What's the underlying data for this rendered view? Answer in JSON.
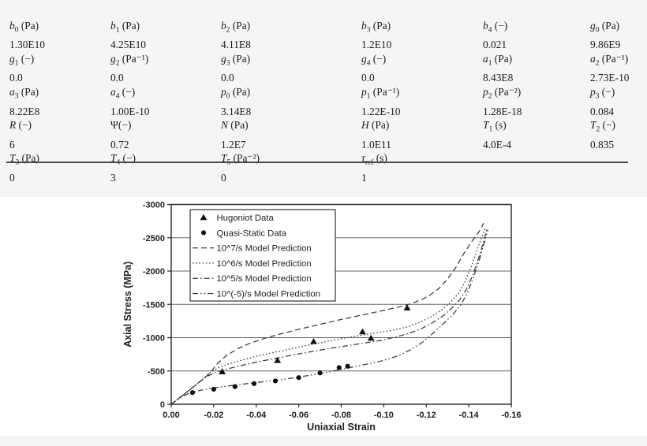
{
  "page": {
    "background_color": "#f5f5f6",
    "figure_background_color": "#ffffff",
    "text_color": "#1c1c1c",
    "line_color": "#3a3a3a"
  },
  "param_table": {
    "rows": [
      {
        "kind": "labels",
        "cells": [
          {
            "var": "b",
            "sub": "0",
            "unit": "(Pa)"
          },
          {
            "var": "b",
            "sub": "1",
            "unit": "(Pa)"
          },
          {
            "var": "b",
            "sub": "2",
            "unit": "(Pa)"
          },
          {
            "var": "b",
            "sub": "3",
            "unit": "(Pa)"
          },
          {
            "var": "b",
            "sub": "4",
            "unit": "(−)"
          },
          {
            "var": "g",
            "sub": "0",
            "unit": "(Pa)"
          }
        ]
      },
      {
        "kind": "values",
        "cells": [
          "1.30E10",
          "4.25E10",
          "4.11E8",
          "1.2E10",
          "0.021",
          "9.86E9"
        ]
      },
      {
        "kind": "labels",
        "cells": [
          {
            "var": "g",
            "sub": "1",
            "unit": "(−)"
          },
          {
            "var": "g",
            "sub": "2",
            "unit": "(Pa⁻¹)"
          },
          {
            "var": "g",
            "sub": "3",
            "unit": "(Pa)"
          },
          {
            "var": "g",
            "sub": "4",
            "unit": "(−)"
          },
          {
            "var": "a",
            "sub": "1",
            "unit": "(Pa)"
          },
          {
            "var": "a",
            "sub": "2",
            "unit": "(Pa⁻¹)"
          }
        ]
      },
      {
        "kind": "values",
        "cells": [
          "0.0",
          "0.0",
          "0.0",
          "0.0",
          "8.43E8",
          "2.73E-10"
        ]
      },
      {
        "kind": "labels",
        "cells": [
          {
            "var": "a",
            "sub": "3",
            "unit": "(Pa)"
          },
          {
            "var": "a",
            "sub": "4",
            "unit": "(−)"
          },
          {
            "var": "p",
            "sub": "0",
            "unit": "(Pa)"
          },
          {
            "var": "p",
            "sub": "1",
            "unit": "(Pa⁻¹)"
          },
          {
            "var": "p",
            "sub": "2",
            "unit": "(Pa⁻²)"
          },
          {
            "var": "p",
            "sub": "3",
            "unit": "(−)"
          }
        ]
      },
      {
        "kind": "values",
        "cells": [
          "8.22E8",
          "1.00E-10",
          "3.14E8",
          "1.22E-10",
          "1.28E-18",
          "0.084"
        ]
      },
      {
        "kind": "labels",
        "cells": [
          {
            "var": "R",
            "sub": "",
            "unit": "(−)"
          },
          {
            "var": "Ψ",
            "sub": "",
            "unit": "(−)",
            "nospace": true,
            "upright": true
          },
          {
            "var": "N",
            "sub": "",
            "unit": "(Pa)"
          },
          {
            "var": "H",
            "sub": "",
            "unit": "(Pa)"
          },
          {
            "var": "T",
            "sub": "1",
            "unit": "(s)"
          },
          {
            "var": "T",
            "sub": "2",
            "unit": "(−)"
          }
        ]
      },
      {
        "kind": "values",
        "cells": [
          "6",
          "0.72",
          "1.2E7",
          "1.0E11",
          "4.0E-4",
          "0.835"
        ]
      },
      {
        "kind": "labels",
        "cells": [
          {
            "var": "T",
            "sub": "3",
            "unit": "(Pa)"
          },
          {
            "var": "T",
            "sub": "4",
            "unit": "(−)"
          },
          {
            "var": "T",
            "sub": "5",
            "unit": "(Pa⁻²)"
          },
          {
            "var": "τ",
            "sub": "ref",
            "unit": "(s)"
          },
          null,
          null
        ]
      },
      {
        "kind": "values",
        "cells": [
          "0",
          "3",
          "0",
          "1",
          "",
          ""
        ]
      }
    ]
  },
  "chart_data": {
    "type": "line",
    "title": "",
    "xlabel": "Uniaxial Strain",
    "ylabel": "Axial Stress (MPa)",
    "xlim": [
      0,
      -0.16
    ],
    "ylim": [
      0,
      -3000
    ],
    "x_ticks": [
      0,
      -0.02,
      -0.04,
      -0.06,
      -0.08,
      -0.1,
      -0.12,
      -0.14,
      -0.16
    ],
    "x_tick_labels": [
      "0.00",
      "-0.02",
      "-0.04",
      "-0.06",
      "-0.08",
      "-0.10",
      "-0.12",
      "-0.14",
      "-0.16"
    ],
    "y_ticks": [
      0,
      -500,
      -1000,
      -1500,
      -2000,
      -2500,
      -3000
    ],
    "y_tick_labels": [
      "0",
      "-500",
      "-1000",
      "-1500",
      "-2000",
      "-2500",
      "-3000"
    ],
    "grid": "horizontal-only",
    "legend_position": "top-left",
    "scatter_series": [
      {
        "name": "Hugoniot Data",
        "marker": "triangle",
        "color": "#111111",
        "points": [
          [
            -0.024,
            -490
          ],
          [
            -0.05,
            -660
          ],
          [
            -0.067,
            -945
          ],
          [
            -0.09,
            -1090
          ],
          [
            -0.094,
            -995
          ],
          [
            -0.111,
            -1450
          ]
        ]
      },
      {
        "name": "Quasi-Static Data",
        "marker": "circle",
        "color": "#111111",
        "points": [
          [
            -0.01,
            -175
          ],
          [
            -0.02,
            -225
          ],
          [
            -0.03,
            -265
          ],
          [
            -0.039,
            -310
          ],
          [
            -0.049,
            -350
          ],
          [
            -0.06,
            -400
          ],
          [
            -0.07,
            -470
          ],
          [
            -0.079,
            -550
          ],
          [
            -0.083,
            -570
          ]
        ]
      }
    ],
    "line_series": [
      {
        "name": "10^7/s Model Prediction",
        "dash_name": "dashed",
        "dash": [
          7,
          4
        ],
        "color": "#3a3a3a",
        "points": [
          [
            0,
            0
          ],
          [
            -0.008,
            -200
          ],
          [
            -0.014,
            -350
          ],
          [
            -0.018,
            -460
          ],
          [
            -0.022,
            -620
          ],
          [
            -0.026,
            -730
          ],
          [
            -0.031,
            -830
          ],
          [
            -0.037,
            -915
          ],
          [
            -0.044,
            -990
          ],
          [
            -0.052,
            -1060
          ],
          [
            -0.06,
            -1125
          ],
          [
            -0.068,
            -1185
          ],
          [
            -0.076,
            -1245
          ],
          [
            -0.084,
            -1300
          ],
          [
            -0.092,
            -1355
          ],
          [
            -0.1,
            -1410
          ],
          [
            -0.107,
            -1460
          ],
          [
            -0.113,
            -1510
          ],
          [
            -0.118,
            -1575
          ],
          [
            -0.122,
            -1645
          ],
          [
            -0.126,
            -1740
          ],
          [
            -0.13,
            -1880
          ],
          [
            -0.134,
            -2060
          ],
          [
            -0.138,
            -2280
          ],
          [
            -0.142,
            -2470
          ],
          [
            -0.145,
            -2600
          ],
          [
            -0.147,
            -2720
          ]
        ]
      },
      {
        "name": "10^6/s Model Prediction",
        "dash_name": "dotted",
        "dash": [
          1.6,
          2.6
        ],
        "color": "#3a3a3a",
        "points": [
          [
            0,
            0
          ],
          [
            -0.008,
            -200
          ],
          [
            -0.014,
            -350
          ],
          [
            -0.018,
            -470
          ],
          [
            -0.022,
            -545
          ],
          [
            -0.027,
            -605
          ],
          [
            -0.033,
            -660
          ],
          [
            -0.04,
            -720
          ],
          [
            -0.048,
            -775
          ],
          [
            -0.056,
            -830
          ],
          [
            -0.064,
            -885
          ],
          [
            -0.072,
            -935
          ],
          [
            -0.08,
            -985
          ],
          [
            -0.088,
            -1030
          ],
          [
            -0.096,
            -1070
          ],
          [
            -0.104,
            -1110
          ],
          [
            -0.111,
            -1160
          ],
          [
            -0.117,
            -1230
          ],
          [
            -0.122,
            -1310
          ],
          [
            -0.127,
            -1410
          ],
          [
            -0.131,
            -1520
          ],
          [
            -0.135,
            -1660
          ],
          [
            -0.138,
            -1820
          ],
          [
            -0.141,
            -2050
          ],
          [
            -0.144,
            -2330
          ],
          [
            -0.146,
            -2500
          ],
          [
            -0.148,
            -2660
          ]
        ]
      },
      {
        "name": "10^5/s Model Prediction",
        "dash_name": "dash-dot",
        "dash": [
          7,
          3,
          1.6,
          3
        ],
        "color": "#3a3a3a",
        "points": [
          [
            0,
            0
          ],
          [
            -0.008,
            -195
          ],
          [
            -0.013,
            -330
          ],
          [
            -0.017,
            -420
          ],
          [
            -0.021,
            -480
          ],
          [
            -0.027,
            -535
          ],
          [
            -0.034,
            -590
          ],
          [
            -0.042,
            -645
          ],
          [
            -0.05,
            -695
          ],
          [
            -0.058,
            -745
          ],
          [
            -0.066,
            -790
          ],
          [
            -0.074,
            -835
          ],
          [
            -0.082,
            -875
          ],
          [
            -0.09,
            -915
          ],
          [
            -0.098,
            -955
          ],
          [
            -0.105,
            -1005
          ],
          [
            -0.112,
            -1065
          ],
          [
            -0.118,
            -1140
          ],
          [
            -0.123,
            -1225
          ],
          [
            -0.128,
            -1330
          ],
          [
            -0.132,
            -1445
          ],
          [
            -0.136,
            -1580
          ],
          [
            -0.139,
            -1730
          ],
          [
            -0.142,
            -1950
          ],
          [
            -0.145,
            -2230
          ],
          [
            -0.147,
            -2450
          ],
          [
            -0.1485,
            -2630
          ]
        ]
      },
      {
        "name": "10^(-5)/s Model Prediction",
        "dash_name": "dash-dot-dot",
        "dash": [
          7,
          3,
          1.6,
          3,
          1.6,
          3
        ],
        "color": "#3a3a3a",
        "points": [
          [
            0,
            0
          ],
          [
            -0.004,
            -95
          ],
          [
            -0.008,
            -160
          ],
          [
            -0.012,
            -198
          ],
          [
            -0.016,
            -224
          ],
          [
            -0.022,
            -254
          ],
          [
            -0.03,
            -288
          ],
          [
            -0.04,
            -325
          ],
          [
            -0.05,
            -363
          ],
          [
            -0.06,
            -407
          ],
          [
            -0.07,
            -462
          ],
          [
            -0.08,
            -522
          ],
          [
            -0.09,
            -588
          ],
          [
            -0.1,
            -658
          ],
          [
            -0.107,
            -730
          ],
          [
            -0.113,
            -825
          ],
          [
            -0.118,
            -925
          ],
          [
            -0.123,
            -1060
          ],
          [
            -0.128,
            -1210
          ],
          [
            -0.132,
            -1330
          ],
          [
            -0.136,
            -1480
          ],
          [
            -0.139,
            -1650
          ],
          [
            -0.142,
            -1890
          ],
          [
            -0.145,
            -2170
          ],
          [
            -0.147,
            -2400
          ],
          [
            -0.149,
            -2620
          ]
        ]
      }
    ]
  }
}
